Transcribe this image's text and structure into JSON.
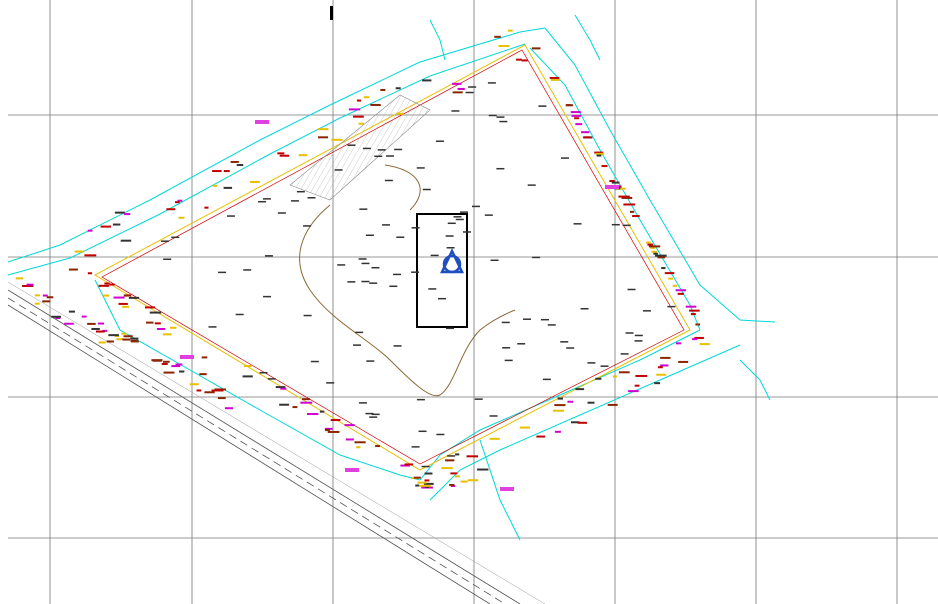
{
  "drawing": {
    "grid": true
  }
}
